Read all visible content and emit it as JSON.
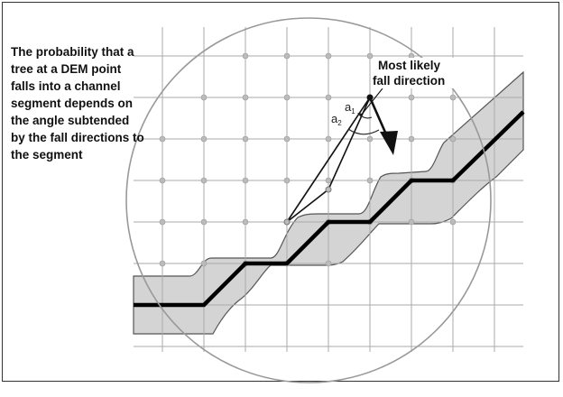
{
  "caption": "The probability that a tree at a DEM point falls into a channel segment depends on the angle subtended by the fall directions to the segment",
  "annotation": {
    "line1": "Most likely",
    "line2": "fall direction"
  },
  "angles": [
    {
      "symbol": "a",
      "subscript": "1"
    },
    {
      "symbol": "a",
      "subscript": "2"
    }
  ],
  "colors": {
    "grid": "#aaaaaa",
    "channel_fill": "#d4d4d4",
    "channel_center": "#000000",
    "circle": "#999999",
    "node": "#bbbbbb"
  }
}
